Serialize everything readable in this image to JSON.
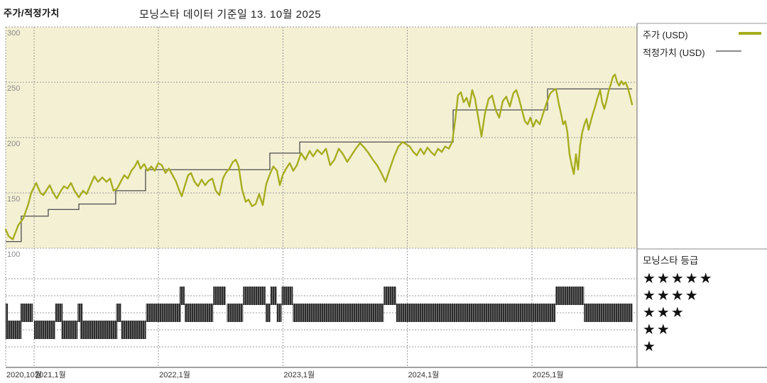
{
  "header": {
    "title": "주가/적정가치",
    "subtitle": "모닝스타 데이터 기준일 13. 10월 2025"
  },
  "legend": {
    "price_label": "주가 (USD)",
    "fair_value_label": "적정가치 (USD)"
  },
  "rating_panel": {
    "title": "모닝스타 등급",
    "rows": [
      {
        "count": 5,
        "stars": "★★★★★"
      },
      {
        "count": 4,
        "stars": "★★★★"
      },
      {
        "count": 3,
        "stars": "★★★"
      },
      {
        "count": 2,
        "stars": "★★"
      },
      {
        "count": 1,
        "stars": "★"
      }
    ]
  },
  "colors": {
    "price": "#a6ad1e",
    "fair_value": "#4d4d4d",
    "legend_fv_line": "#8a8a8a",
    "plot_bg": "#f4f0d4",
    "grid": "#9a9a9a",
    "axis": "#444444",
    "y_label": "#8c8c8c",
    "x_label": "#333333",
    "rating_bar_dark": "#2c2c2c",
    "rating_bar_light": "#7a7a7a"
  },
  "chart_data": {
    "type": "line",
    "title": "주가/적정가치",
    "subtitle": "모닝스타 데이터 기준일 13. 10월 2025",
    "xlabel": "",
    "ylabel": "USD",
    "x_domain": [
      2020.772,
      2025.846
    ],
    "ylim": [
      100,
      300
    ],
    "y_ticks": [
      300,
      250,
      200,
      150,
      100
    ],
    "x_ticks": [
      {
        "t": 2020.772,
        "label": "2020,10월"
      },
      {
        "t": 2021.0,
        "label": "2021,1월"
      },
      {
        "t": 2022.0,
        "label": "2022,1월"
      },
      {
        "t": 2023.0,
        "label": "2023,1월"
      },
      {
        "t": 2024.0,
        "label": "2024,1월"
      },
      {
        "t": 2025.0,
        "label": "2025,1월"
      }
    ],
    "grid": true,
    "legend_position": "top-right",
    "series": [
      {
        "name": "주가 (USD)",
        "type": "line",
        "points": [
          [
            2020.772,
            117
          ],
          [
            2020.795,
            111
          ],
          [
            2020.829,
            108
          ],
          [
            2020.874,
            121
          ],
          [
            2020.914,
            127
          ],
          [
            2020.954,
            140
          ],
          [
            2020.977,
            150
          ],
          [
            2021.017,
            159
          ],
          [
            2021.051,
            150
          ],
          [
            2021.074,
            148
          ],
          [
            2021.103,
            153
          ],
          [
            2021.126,
            157
          ],
          [
            2021.154,
            150
          ],
          [
            2021.183,
            145
          ],
          [
            2021.211,
            151
          ],
          [
            2021.24,
            156
          ],
          [
            2021.268,
            154
          ],
          [
            2021.297,
            159
          ],
          [
            2021.325,
            152
          ],
          [
            2021.36,
            146
          ],
          [
            2021.394,
            152
          ],
          [
            2021.422,
            149
          ],
          [
            2021.457,
            158
          ],
          [
            2021.485,
            165
          ],
          [
            2021.514,
            160
          ],
          [
            2021.548,
            164
          ],
          [
            2021.582,
            160
          ],
          [
            2021.611,
            163
          ],
          [
            2021.639,
            152
          ],
          [
            2021.668,
            154
          ],
          [
            2021.696,
            160
          ],
          [
            2021.725,
            166
          ],
          [
            2021.753,
            163
          ],
          [
            2021.782,
            170
          ],
          [
            2021.81,
            174
          ],
          [
            2021.833,
            179
          ],
          [
            2021.856,
            172
          ],
          [
            2021.885,
            176
          ],
          [
            2021.913,
            170
          ],
          [
            2021.942,
            174
          ],
          [
            2021.97,
            170
          ],
          [
            2021.999,
            177
          ],
          [
            2022.027,
            175
          ],
          [
            2022.056,
            168
          ],
          [
            2022.084,
            172
          ],
          [
            2022.113,
            166
          ],
          [
            2022.142,
            160
          ],
          [
            2022.164,
            153
          ],
          [
            2022.187,
            147
          ],
          [
            2022.216,
            158
          ],
          [
            2022.239,
            166
          ],
          [
            2022.261,
            168
          ],
          [
            2022.29,
            160
          ],
          [
            2022.318,
            156
          ],
          [
            2022.347,
            162
          ],
          [
            2022.375,
            157
          ],
          [
            2022.404,
            161
          ],
          [
            2022.433,
            163
          ],
          [
            2022.461,
            152
          ],
          [
            2022.49,
            148
          ],
          [
            2022.518,
            163
          ],
          [
            2022.541,
            168
          ],
          [
            2022.57,
            172
          ],
          [
            2022.598,
            178
          ],
          [
            2022.621,
            180
          ],
          [
            2022.644,
            174
          ],
          [
            2022.672,
            153
          ],
          [
            2022.701,
            142
          ],
          [
            2022.724,
            144
          ],
          [
            2022.752,
            138
          ],
          [
            2022.781,
            140
          ],
          [
            2022.809,
            149
          ],
          [
            2022.838,
            139
          ],
          [
            2022.866,
            158
          ],
          [
            2022.895,
            167
          ],
          [
            2022.923,
            174
          ],
          [
            2022.952,
            170
          ],
          [
            2022.975,
            157
          ],
          [
            2022.998,
            166
          ],
          [
            2023.026,
            172
          ],
          [
            2023.055,
            177
          ],
          [
            2023.083,
            170
          ],
          [
            2023.112,
            175
          ],
          [
            2023.146,
            186
          ],
          [
            2023.18,
            180
          ],
          [
            2023.215,
            188
          ],
          [
            2023.243,
            183
          ],
          [
            2023.277,
            189
          ],
          [
            2023.312,
            185
          ],
          [
            2023.346,
            190
          ],
          [
            2023.38,
            175
          ],
          [
            2023.414,
            180
          ],
          [
            2023.449,
            190
          ],
          [
            2023.483,
            185
          ],
          [
            2023.517,
            178
          ],
          [
            2023.551,
            184
          ],
          [
            2023.586,
            190
          ],
          [
            2023.62,
            195
          ],
          [
            2023.654,
            191
          ],
          [
            2023.688,
            186
          ],
          [
            2023.723,
            180
          ],
          [
            2023.757,
            175
          ],
          [
            2023.791,
            168
          ],
          [
            2023.825,
            160
          ],
          [
            2023.86,
            172
          ],
          [
            2023.894,
            183
          ],
          [
            2023.928,
            192
          ],
          [
            2023.962,
            196
          ],
          [
            2023.991,
            194
          ],
          [
            2024.019,
            192
          ],
          [
            2024.048,
            187
          ],
          [
            2024.076,
            184
          ],
          [
            2024.105,
            190
          ],
          [
            2024.133,
            185
          ],
          [
            2024.162,
            191
          ],
          [
            2024.19,
            187
          ],
          [
            2024.219,
            184
          ],
          [
            2024.247,
            190
          ],
          [
            2024.276,
            187
          ],
          [
            2024.304,
            192
          ],
          [
            2024.333,
            190
          ],
          [
            2024.361,
            196
          ],
          [
            2024.384,
            215
          ],
          [
            2024.407,
            238
          ],
          [
            2024.43,
            241
          ],
          [
            2024.453,
            232
          ],
          [
            2024.476,
            236
          ],
          [
            2024.499,
            228
          ],
          [
            2024.521,
            243
          ],
          [
            2024.544,
            235
          ],
          [
            2024.567,
            220
          ],
          [
            2024.596,
            201
          ],
          [
            2024.624,
            222
          ],
          [
            2024.653,
            235
          ],
          [
            2024.681,
            238
          ],
          [
            2024.71,
            225
          ],
          [
            2024.738,
            218
          ],
          [
            2024.767,
            233
          ],
          [
            2024.795,
            237
          ],
          [
            2024.824,
            228
          ],
          [
            2024.852,
            240
          ],
          [
            2024.875,
            243
          ],
          [
            2024.898,
            235
          ],
          [
            2024.921,
            225
          ],
          [
            2024.944,
            215
          ],
          [
            2024.967,
            212
          ],
          [
            2024.989,
            218
          ],
          [
            2025.012,
            210
          ],
          [
            2025.035,
            216
          ],
          [
            2025.064,
            212
          ],
          [
            2025.092,
            222
          ],
          [
            2025.121,
            232
          ],
          [
            2025.149,
            240
          ],
          [
            2025.178,
            243
          ],
          [
            2025.195,
            244
          ],
          [
            2025.218,
            230
          ],
          [
            2025.235,
            222
          ],
          [
            2025.252,
            212
          ],
          [
            2025.269,
            215
          ],
          [
            2025.286,
            205
          ],
          [
            2025.303,
            185
          ],
          [
            2025.321,
            175
          ],
          [
            2025.338,
            167
          ],
          [
            2025.355,
            185
          ],
          [
            2025.372,
            171
          ],
          [
            2025.389,
            193
          ],
          [
            2025.406,
            205
          ],
          [
            2025.423,
            212
          ],
          [
            2025.44,
            217
          ],
          [
            2025.457,
            207
          ],
          [
            2025.475,
            215
          ],
          [
            2025.492,
            222
          ],
          [
            2025.509,
            228
          ],
          [
            2025.526,
            235
          ],
          [
            2025.549,
            243
          ],
          [
            2025.566,
            232
          ],
          [
            2025.583,
            226
          ],
          [
            2025.6,
            233
          ],
          [
            2025.617,
            242
          ],
          [
            2025.635,
            248
          ],
          [
            2025.652,
            255
          ],
          [
            2025.669,
            257
          ],
          [
            2025.686,
            250
          ],
          [
            2025.703,
            247
          ],
          [
            2025.72,
            251
          ],
          [
            2025.737,
            248
          ],
          [
            2025.754,
            250
          ],
          [
            2025.772,
            245
          ],
          [
            2025.789,
            238
          ],
          [
            2025.806,
            230
          ]
        ]
      },
      {
        "name": "적정가치 (USD)",
        "type": "step",
        "points": [
          [
            2020.772,
            106
          ],
          [
            2020.897,
            129
          ],
          [
            2021.114,
            135
          ],
          [
            2021.36,
            140
          ],
          [
            2021.656,
            152
          ],
          [
            2021.896,
            171
          ],
          [
            2022.895,
            186
          ],
          [
            2023.135,
            196
          ],
          [
            2024.368,
            225
          ],
          [
            2025.127,
            244
          ],
          [
            2025.806,
            244
          ]
        ]
      }
    ],
    "ratings": {
      "levels": [
        5,
        4,
        3,
        2,
        1
      ],
      "segments": [
        {
          "stars": 2,
          "from": 2020.77,
          "to": 2020.9
        },
        {
          "stars": 2,
          "from": 2021.0,
          "to": 2021.17
        },
        {
          "stars": 2,
          "from": 2021.22,
          "to": 2021.35
        },
        {
          "stars": 2,
          "from": 2021.37,
          "to": 2021.67
        },
        {
          "stars": 2,
          "from": 2021.7,
          "to": 2021.9
        },
        {
          "stars": 3,
          "from": 2020.77,
          "to": 2020.79
        },
        {
          "stars": 3,
          "from": 2020.89,
          "to": 2020.99
        },
        {
          "stars": 3,
          "from": 2021.17,
          "to": 2021.23
        },
        {
          "stars": 3,
          "from": 2021.35,
          "to": 2021.39
        },
        {
          "stars": 3,
          "from": 2021.66,
          "to": 2021.7
        },
        {
          "stars": 3,
          "from": 2021.9,
          "to": 2022.18
        },
        {
          "stars": 3,
          "from": 2022.21,
          "to": 2022.44
        },
        {
          "stars": 3,
          "from": 2022.55,
          "to": 2022.68
        },
        {
          "stars": 3,
          "from": 2022.86,
          "to": 2022.9
        },
        {
          "stars": 3,
          "from": 2022.95,
          "to": 2022.99
        },
        {
          "stars": 3,
          "from": 2023.08,
          "to": 2023.81
        },
        {
          "stars": 3,
          "from": 2023.91,
          "to": 2025.19
        },
        {
          "stars": 3,
          "from": 2025.42,
          "to": 2025.81
        },
        {
          "stars": 4,
          "from": 2022.17,
          "to": 2022.21
        },
        {
          "stars": 4,
          "from": 2022.44,
          "to": 2022.54
        },
        {
          "stars": 4,
          "from": 2022.68,
          "to": 2022.86
        },
        {
          "stars": 4,
          "from": 2022.9,
          "to": 2022.95
        },
        {
          "stars": 4,
          "from": 2022.99,
          "to": 2023.08
        },
        {
          "stars": 4,
          "from": 2023.81,
          "to": 2023.91
        },
        {
          "stars": 4,
          "from": 2025.19,
          "to": 2025.42
        }
      ]
    }
  }
}
